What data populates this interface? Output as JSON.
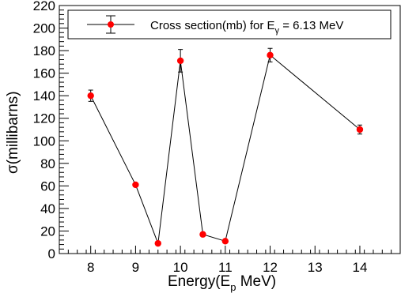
{
  "chart_data": {
    "type": "scatter",
    "connected": true,
    "title": "",
    "xlabel": "Energy(E",
    "xlabel_sub": "p",
    "xlabel_tail": " MeV)",
    "ylabel": "σ(millibarns)",
    "xlim": [
      7.3,
      14.9
    ],
    "ylim": [
      0,
      220
    ],
    "x_ticks": [
      8,
      9,
      10,
      11,
      12,
      13,
      14
    ],
    "y_ticks": [
      0,
      20,
      40,
      60,
      80,
      100,
      120,
      140,
      160,
      180,
      200,
      220
    ],
    "x_tick_labels": [
      "8",
      "9",
      "10",
      "11",
      "12",
      "13",
      "14"
    ],
    "y_tick_labels": [
      "0",
      "20",
      "40",
      "60",
      "80",
      "100",
      "120",
      "140",
      "160",
      "180",
      "200",
      "220"
    ],
    "grid": false,
    "legend_position": "top",
    "marker_color": "#ff0000",
    "line_color": "#000000",
    "series": [
      {
        "legend_text": "Cross section(mb) for E",
        "legend_sub": "γ",
        "legend_tail": " = 6.13 MeV",
        "x": [
          8,
          9,
          9.5,
          10,
          10.5,
          11,
          12,
          14
        ],
        "y": [
          140,
          61,
          9,
          171,
          17,
          11,
          176,
          110
        ],
        "yerr": [
          5,
          0,
          0,
          10,
          0,
          0,
          6,
          4
        ]
      }
    ]
  }
}
